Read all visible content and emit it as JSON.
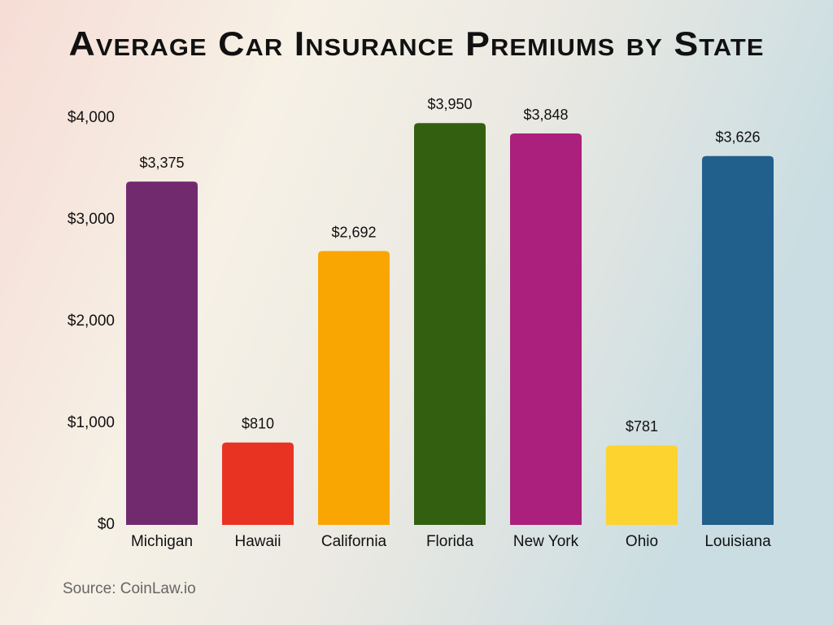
{
  "chart_data": {
    "type": "bar",
    "title": "Average Car Insurance Premiums by State",
    "categories": [
      "Michigan",
      "Hawaii",
      "California",
      "Florida",
      "New York",
      "Ohio",
      "Louisiana"
    ],
    "values": [
      3375,
      810,
      2692,
      3950,
      3848,
      781,
      3626
    ],
    "value_labels": [
      "$3,375",
      "$810",
      "$2,692",
      "$3,950",
      "$3,848",
      "$781",
      "$3,626"
    ],
    "colors": [
      "#722a6f",
      "#e83323",
      "#f9a602",
      "#336010",
      "#ab1f7d",
      "#fdd330",
      "#215f8c"
    ],
    "ylim": [
      0,
      4000
    ],
    "yticks": [
      {
        "value": 0,
        "label": "$0"
      },
      {
        "value": 1000,
        "label": "$1,000"
      },
      {
        "value": 2000,
        "label": "$2,000"
      },
      {
        "value": 3000,
        "label": "$3,000"
      },
      {
        "value": 4000,
        "label": "$4,000"
      }
    ],
    "grid": false,
    "source": "Source: CoinLaw.io"
  }
}
